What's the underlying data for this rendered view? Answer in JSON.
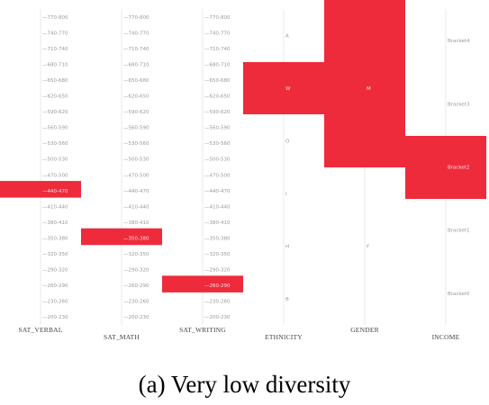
{
  "caption": "(a) Very low diversity",
  "chart_data": {
    "type": "parallel-sets",
    "highlight_color": "#ee2b3b",
    "axes": [
      {
        "name": "SAT_VERBAL",
        "categories": [
          "770-800",
          "740-770",
          "710-740",
          "680-710",
          "650-680",
          "620-650",
          "590-620",
          "560-590",
          "530-560",
          "500-530",
          "470-500",
          "440-470",
          "410-440",
          "380-410",
          "350-380",
          "320-350",
          "290-320",
          "260-290",
          "230-260",
          "200-230"
        ],
        "highlighted": "440-470"
      },
      {
        "name": "SAT_MATH",
        "categories": [
          "770-800",
          "740-770",
          "710-740",
          "680-710",
          "650-680",
          "620-650",
          "590-620",
          "560-590",
          "530-560",
          "500-530",
          "470-500",
          "440-470",
          "410-440",
          "380-410",
          "350-380",
          "320-350",
          "290-320",
          "260-290",
          "230-260",
          "200-230"
        ],
        "highlighted": "350-380"
      },
      {
        "name": "SAT_WRITING",
        "categories": [
          "770-800",
          "740-770",
          "710-740",
          "680-710",
          "650-680",
          "620-650",
          "590-620",
          "560-590",
          "530-560",
          "500-530",
          "470-500",
          "440-470",
          "410-440",
          "380-410",
          "350-380",
          "320-350",
          "290-320",
          "260-290",
          "230-260",
          "200-230"
        ],
        "highlighted": "260-290"
      },
      {
        "name": "ETHNICITY",
        "categories": [
          "A",
          "W",
          "O",
          "I",
          "H",
          "B"
        ],
        "highlighted": "W"
      },
      {
        "name": "GENDER",
        "categories": [
          "M",
          "F"
        ],
        "highlighted": "M"
      },
      {
        "name": "INCOME",
        "categories": [
          "Bracket4",
          "Bracket3",
          "Bracket2",
          "Bracket1",
          "Bracket0"
        ],
        "highlighted": "Bracket2"
      }
    ]
  }
}
